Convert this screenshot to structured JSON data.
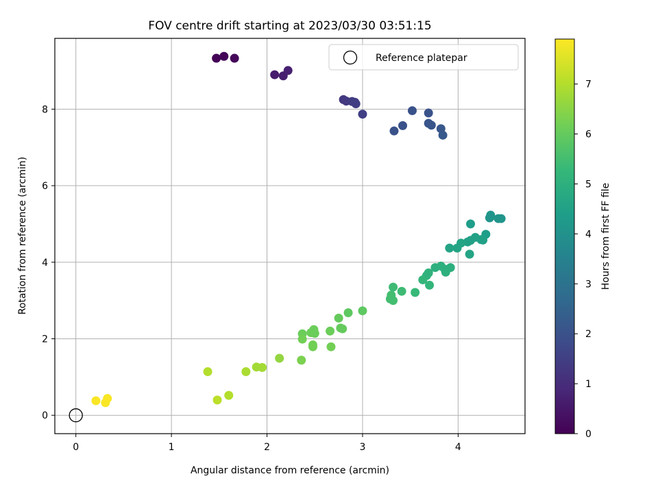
{
  "chart_data": {
    "type": "scatter",
    "title": "FOV centre drift starting at 2023/03/30 03:51:15",
    "xlabel": "Angular distance from reference (arcmin)",
    "ylabel": "Rotation from reference (arcmin)",
    "xlim": [
      -0.22,
      4.7
    ],
    "ylim": [
      -0.48,
      9.85
    ],
    "xticks": [
      0,
      1,
      2,
      3,
      4
    ],
    "yticks": [
      0,
      2,
      4,
      6,
      8
    ],
    "grid": true,
    "legend": {
      "placement": "top-right",
      "entries": [
        "Reference platepar"
      ]
    },
    "reference_point": {
      "x": 0,
      "y": 0
    },
    "colorbar": {
      "label": "Hours from first FF file",
      "range": [
        0,
        7.9
      ],
      "ticks": [
        0,
        1,
        2,
        3,
        4,
        5,
        6,
        7
      ],
      "colormap": "viridis",
      "colors": [
        "#440154",
        "#482878",
        "#3e4989",
        "#31688e",
        "#26828e",
        "#1f9e89",
        "#35b779",
        "#6ece58",
        "#b5de2b",
        "#fde725"
      ]
    },
    "series": [
      {
        "values": [
          {
            "x": 1.47,
            "y": 9.33,
            "c": 0.05
          },
          {
            "x": 1.55,
            "y": 9.38,
            "c": 0.1
          },
          {
            "x": 1.66,
            "y": 9.33,
            "c": 0.15
          },
          {
            "x": 2.08,
            "y": 8.9,
            "c": 0.6
          },
          {
            "x": 2.17,
            "y": 8.87,
            "c": 0.65
          },
          {
            "x": 2.22,
            "y": 9.01,
            "c": 0.7
          },
          {
            "x": 2.8,
            "y": 8.25,
            "c": 1.3
          },
          {
            "x": 2.83,
            "y": 8.21,
            "c": 1.35
          },
          {
            "x": 2.89,
            "y": 8.2,
            "c": 1.4
          },
          {
            "x": 2.93,
            "y": 8.14,
            "c": 1.45
          },
          {
            "x": 2.92,
            "y": 8.18,
            "c": 1.45
          },
          {
            "x": 3.0,
            "y": 7.87,
            "c": 1.5
          },
          {
            "x": 3.33,
            "y": 7.43,
            "c": 2.0
          },
          {
            "x": 3.42,
            "y": 7.57,
            "c": 2.0
          },
          {
            "x": 3.52,
            "y": 7.96,
            "c": 2.0
          },
          {
            "x": 3.69,
            "y": 7.9,
            "c": 2.05
          },
          {
            "x": 3.69,
            "y": 7.63,
            "c": 2.1
          },
          {
            "x": 3.72,
            "y": 7.58,
            "c": 2.1
          },
          {
            "x": 3.82,
            "y": 7.49,
            "c": 2.15
          },
          {
            "x": 3.84,
            "y": 7.32,
            "c": 2.2
          },
          {
            "x": 4.34,
            "y": 5.23,
            "c": 4.1
          },
          {
            "x": 4.33,
            "y": 5.16,
            "c": 4.1
          },
          {
            "x": 4.42,
            "y": 5.14,
            "c": 4.1
          },
          {
            "x": 4.45,
            "y": 5.14,
            "c": 4.1
          },
          {
            "x": 4.13,
            "y": 5.0,
            "c": 4.4
          },
          {
            "x": 4.29,
            "y": 4.73,
            "c": 4.4
          },
          {
            "x": 4.18,
            "y": 4.65,
            "c": 4.5
          },
          {
            "x": 4.24,
            "y": 4.59,
            "c": 4.5
          },
          {
            "x": 4.26,
            "y": 4.58,
            "c": 4.5
          },
          {
            "x": 4.13,
            "y": 4.57,
            "c": 4.5
          },
          {
            "x": 4.1,
            "y": 4.53,
            "c": 4.5
          },
          {
            "x": 4.03,
            "y": 4.5,
            "c": 4.6
          },
          {
            "x": 3.99,
            "y": 4.37,
            "c": 4.6
          },
          {
            "x": 3.91,
            "y": 4.37,
            "c": 4.6
          },
          {
            "x": 4.12,
            "y": 4.21,
            "c": 4.6
          },
          {
            "x": 3.76,
            "y": 3.86,
            "c": 5.0
          },
          {
            "x": 3.82,
            "y": 3.9,
            "c": 5.0
          },
          {
            "x": 3.86,
            "y": 3.82,
            "c": 5.0
          },
          {
            "x": 3.92,
            "y": 3.86,
            "c": 5.0
          },
          {
            "x": 3.87,
            "y": 3.74,
            "c": 5.0
          },
          {
            "x": 3.69,
            "y": 3.72,
            "c": 5.1
          },
          {
            "x": 3.67,
            "y": 3.65,
            "c": 5.1
          },
          {
            "x": 3.63,
            "y": 3.54,
            "c": 5.2
          },
          {
            "x": 3.7,
            "y": 3.4,
            "c": 5.2
          },
          {
            "x": 3.55,
            "y": 3.21,
            "c": 5.3
          },
          {
            "x": 3.32,
            "y": 3.35,
            "c": 5.4
          },
          {
            "x": 3.41,
            "y": 3.24,
            "c": 5.4
          },
          {
            "x": 3.3,
            "y": 3.14,
            "c": 5.5
          },
          {
            "x": 3.29,
            "y": 3.04,
            "c": 5.5
          },
          {
            "x": 3.32,
            "y": 3.0,
            "c": 5.5
          },
          {
            "x": 3.0,
            "y": 2.73,
            "c": 5.9
          },
          {
            "x": 2.85,
            "y": 2.68,
            "c": 5.9
          },
          {
            "x": 2.75,
            "y": 2.54,
            "c": 6.0
          },
          {
            "x": 2.77,
            "y": 2.28,
            "c": 6.0
          },
          {
            "x": 2.79,
            "y": 2.26,
            "c": 6.0
          },
          {
            "x": 2.49,
            "y": 2.24,
            "c": 6.1
          },
          {
            "x": 2.66,
            "y": 2.2,
            "c": 6.1
          },
          {
            "x": 2.46,
            "y": 2.16,
            "c": 6.1
          },
          {
            "x": 2.5,
            "y": 2.14,
            "c": 6.1
          },
          {
            "x": 2.37,
            "y": 2.13,
            "c": 6.1
          },
          {
            "x": 2.37,
            "y": 1.99,
            "c": 6.2
          },
          {
            "x": 2.48,
            "y": 1.84,
            "c": 6.2
          },
          {
            "x": 2.48,
            "y": 1.79,
            "c": 6.2
          },
          {
            "x": 2.67,
            "y": 1.79,
            "c": 6.2
          },
          {
            "x": 2.36,
            "y": 1.44,
            "c": 6.3
          },
          {
            "x": 2.13,
            "y": 1.49,
            "c": 6.6
          },
          {
            "x": 1.89,
            "y": 1.26,
            "c": 6.8
          },
          {
            "x": 1.95,
            "y": 1.25,
            "c": 6.8
          },
          {
            "x": 1.78,
            "y": 1.14,
            "c": 6.9
          },
          {
            "x": 1.6,
            "y": 0.52,
            "c": 7.0
          },
          {
            "x": 1.38,
            "y": 1.14,
            "c": 7.0
          },
          {
            "x": 1.48,
            "y": 0.4,
            "c": 7.1
          },
          {
            "x": 0.21,
            "y": 0.38,
            "c": 7.85
          },
          {
            "x": 0.33,
            "y": 0.44,
            "c": 7.85
          },
          {
            "x": 0.31,
            "y": 0.33,
            "c": 7.85
          }
        ]
      }
    ]
  }
}
